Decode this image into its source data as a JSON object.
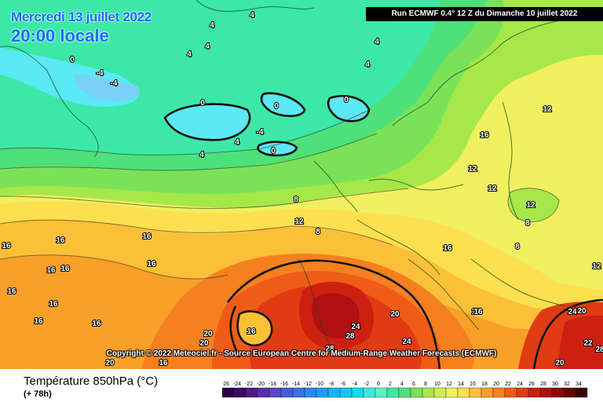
{
  "map": {
    "date_label": "Mercredi 13 juillet 2022",
    "time_label": "20:00 locale",
    "run_label": "Run ECMWF 0.4° 12 Z du Dimanche 10 juillet 2022",
    "copyright": "Copyright © 2022 Meteociel.fr - Source European Centre for Medium-Range Weather Forecasts (ECMWF)",
    "variable_title": "Température 850hPa (°C)",
    "lead_time": "(+ 78h)",
    "contour_labels": [
      "0",
      "-4",
      "-4",
      "4",
      "0",
      "0",
      "0",
      "4",
      "4",
      "4",
      "4",
      "4",
      "4",
      "-4",
      "0",
      "4",
      "8",
      "12",
      "12",
      "16",
      "12",
      "12",
      "12",
      "8",
      "8",
      "8",
      "16",
      "16",
      "16",
      "16",
      "16",
      "16",
      "16",
      "16",
      "16",
      "16",
      "16",
      "12",
      "16",
      "12",
      "20",
      "20",
      "20",
      "20",
      "24",
      "28",
      "24",
      "28",
      "16",
      "20",
      "24",
      "20",
      "22",
      "28",
      "20",
      "16"
    ]
  },
  "legend": {
    "ticks": [
      "-26",
      "-24",
      "-22",
      "-20",
      "-18",
      "-16",
      "-14",
      "-12",
      "-10",
      "-8",
      "-6",
      "-4",
      "-2",
      "0",
      "2",
      "4",
      "6",
      "8",
      "10",
      "12",
      "14",
      "16",
      "18",
      "20",
      "22",
      "24",
      "26",
      "28",
      "30",
      "32",
      "34"
    ],
    "colors": [
      "#2a0044",
      "#3b0a66",
      "#4e1a88",
      "#5b2ca8",
      "#5a44c0",
      "#4b5cd4",
      "#3a70e0",
      "#2c86ec",
      "#1f9cf2",
      "#16b4f4",
      "#10c8f0",
      "#14dcea",
      "#3ce8dc",
      "#5cf0c8",
      "#3ee6a0",
      "#4ee07a",
      "#7ae258",
      "#a6e84a",
      "#d0ee52",
      "#f0f060",
      "#fce050",
      "#fcc038",
      "#f8a028",
      "#f48020",
      "#ee5c18",
      "#e03c14",
      "#cc2010",
      "#b01010",
      "#900808",
      "#6a0404",
      "#3c0000"
    ]
  },
  "colors": {
    "header_text": "#1a6cff",
    "run_box_bg": "#000000",
    "contour_line": "#111111"
  }
}
